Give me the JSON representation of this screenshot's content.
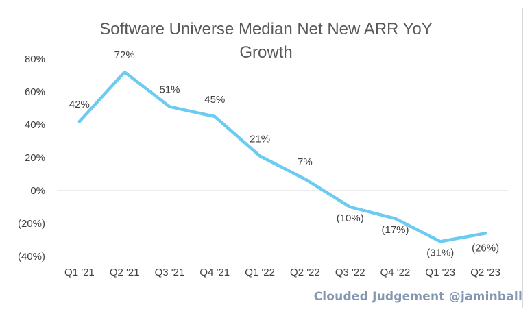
{
  "chart_data": {
    "type": "line",
    "title": "Software Universe Median Net New ARR YoY Growth",
    "title_lines": [
      "Software Universe Median Net New ARR YoY",
      "Growth"
    ],
    "categories": [
      "Q1 '21",
      "Q2 '21",
      "Q3 '21",
      "Q4 '21",
      "Q1 '22",
      "Q2 '22",
      "Q3 '22",
      "Q4 '22",
      "Q1 '23",
      "Q2 '23"
    ],
    "series": [
      {
        "values": [
          42,
          72,
          51,
          45,
          21,
          7,
          -10,
          -17,
          -31,
          -26
        ],
        "labels": [
          "42%",
          "72%",
          "51%",
          "45%",
          "21%",
          "7%",
          "(10%)",
          "(17%)",
          "(31%)",
          "(26%)"
        ],
        "color": "#6ccbf0"
      }
    ],
    "y_ticks": [
      {
        "value": 80,
        "label": "80%"
      },
      {
        "value": 60,
        "label": "60%"
      },
      {
        "value": 40,
        "label": "40%"
      },
      {
        "value": 20,
        "label": "20%"
      },
      {
        "value": 0,
        "label": "0%"
      },
      {
        "value": -20,
        "label": "(20%)"
      },
      {
        "value": -40,
        "label": "(40%)"
      }
    ],
    "ylim": [
      -40,
      80
    ],
    "xlabel": "",
    "ylabel": "",
    "grid": false,
    "legend": "none",
    "zero_line_color": "#d9d9d9"
  },
  "watermark": "Clouded Judgement @jaminball"
}
